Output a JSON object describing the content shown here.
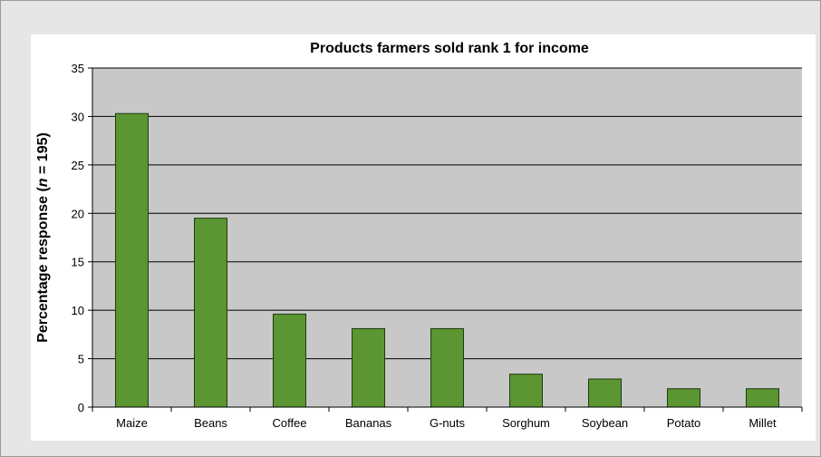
{
  "chart_data": {
    "type": "bar",
    "title": "Products farmers sold rank 1 for income",
    "ylabel_prefix": "Percentage response (",
    "ylabel_n": "n",
    "ylabel_suffix": " = 195)",
    "xlabel": "",
    "categories": [
      "Maize",
      "Beans",
      "Coffee",
      "Bananas",
      "G-nuts",
      "Sorghum",
      "Soybean",
      "Potato",
      "Millet"
    ],
    "values": [
      30.3,
      19.5,
      9.6,
      8.1,
      8.1,
      3.4,
      2.9,
      1.9,
      1.9
    ],
    "ylim": [
      0,
      35
    ],
    "yticks": [
      0,
      5,
      10,
      15,
      20,
      25,
      30,
      35
    ],
    "grid": true,
    "legend": "none",
    "colors": {
      "bar": "#5b9632",
      "bar_edge": "#1f3a10",
      "plot_bg": "#c8c8c8",
      "panel_bg": "#ffffff",
      "outer_bg": "#e6e6e6"
    }
  }
}
